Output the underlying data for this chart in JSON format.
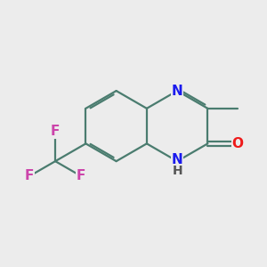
{
  "background_color": "#ececec",
  "bond_color": "#4a7c6f",
  "atom_colors": {
    "N": "#1a1aee",
    "O": "#ee1a1a",
    "F": "#cc44aa",
    "C": "#4a7c6f"
  },
  "font_size_atom": 11,
  "lw": 1.6,
  "dbo": 0.055,
  "scale": 0.72
}
